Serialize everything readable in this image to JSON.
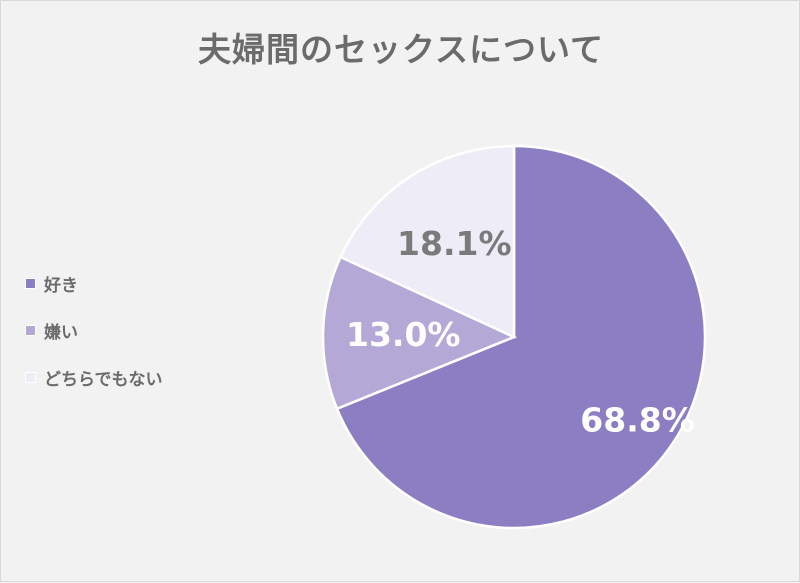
{
  "chart_data": {
    "type": "pie",
    "title": "夫婦間のセックスについて",
    "categories": [
      "好き",
      "嫌い",
      "どちらでもない"
    ],
    "values": [
      68.8,
      13.0,
      18.1
    ],
    "labels": [
      "68.8%",
      "13.0%",
      "18.1%"
    ],
    "colors": [
      "#8c7ec2",
      "#b4a9d6",
      "#eeecf6"
    ],
    "label_colors": [
      "#ffffff",
      "#ffffff",
      "#7a7a7a"
    ],
    "legend_position": "left"
  }
}
